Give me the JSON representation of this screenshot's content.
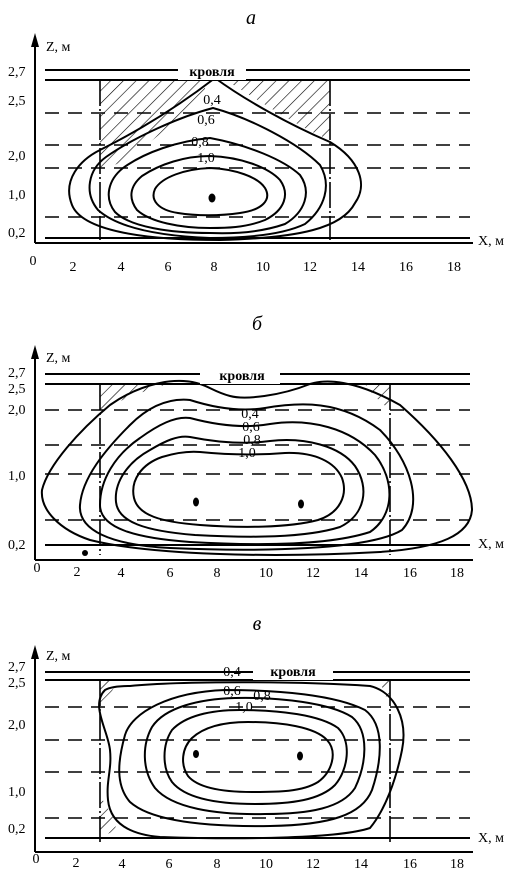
{
  "panels": [
    {
      "letter": "а",
      "z_axis_label": "Z, м",
      "x_axis_label": "X, м",
      "roof_label": "кровля",
      "z_ticks": [
        "2,7",
        "2,5",
        "2,0",
        "1,0",
        "0,2"
      ],
      "x_ticks": [
        "0",
        "2",
        "4",
        "6",
        "8",
        "10",
        "12",
        "14",
        "16",
        "18"
      ],
      "contour_labels": [
        "0,4",
        "0,6",
        "0,8",
        "1,0"
      ]
    },
    {
      "letter": "б",
      "z_axis_label": "Z, м",
      "x_axis_label": "X, м",
      "roof_label": "кровля",
      "z_ticks": [
        "2,7",
        "2,5",
        "2,0",
        "1,0",
        "0,2"
      ],
      "x_ticks": [
        "0",
        "2",
        "4",
        "6",
        "8",
        "10",
        "12",
        "14",
        "16",
        "18"
      ],
      "contour_labels": [
        "0,4",
        "0,6",
        "0,8",
        "1,0"
      ]
    },
    {
      "letter": "в",
      "z_axis_label": "Z, м",
      "x_axis_label": "X, м",
      "roof_label": "кровля",
      "z_ticks": [
        "2,7",
        "2,5",
        "2,0",
        "1,0",
        "0,2"
      ],
      "x_ticks": [
        "0",
        "2",
        "4",
        "6",
        "8",
        "10",
        "12",
        "14",
        "16",
        "18"
      ],
      "contour_labels": [
        "0,4",
        "0,6",
        "0,8",
        "1,0"
      ]
    }
  ]
}
